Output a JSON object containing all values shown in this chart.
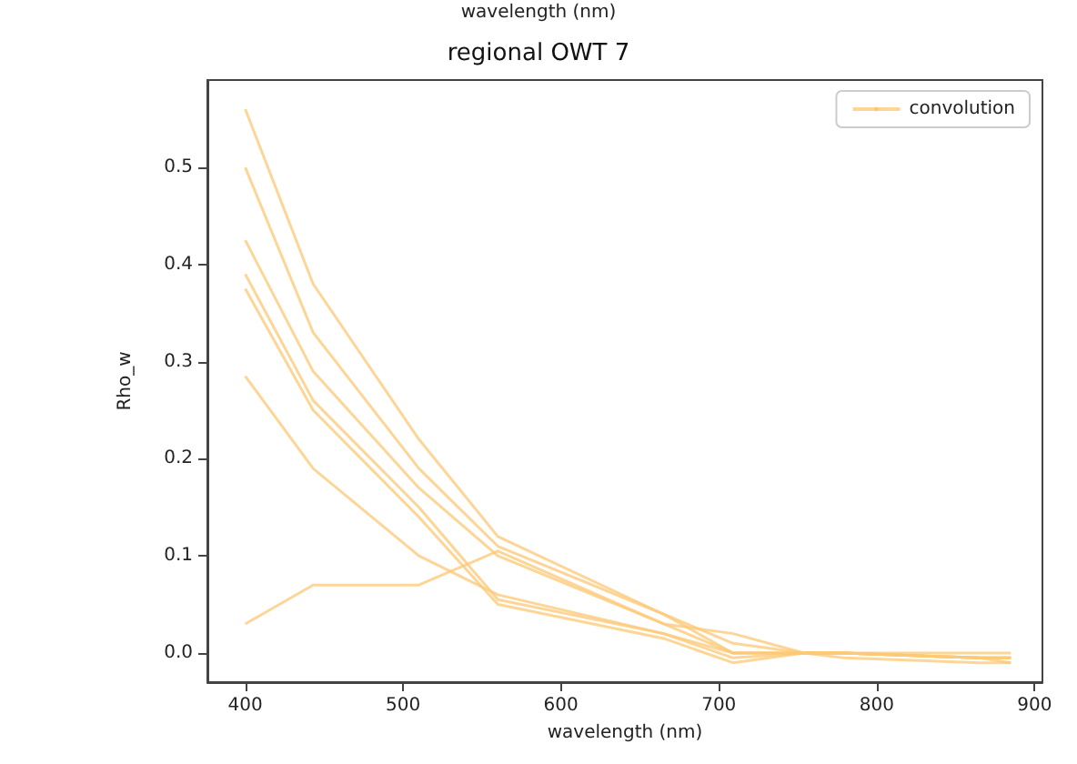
{
  "chart_data": {
    "type": "line",
    "title": "regional OWT 7",
    "xlabel": "wavelength (nm)",
    "ylabel": "Rho_w",
    "annotations": [
      "wavelength (nm)"
    ],
    "x": [
      400,
      443,
      510,
      560,
      665,
      709,
      754,
      779,
      865,
      885
    ],
    "xlim": [
      376,
      905
    ],
    "xticks": [
      400,
      500,
      600,
      700,
      800,
      900
    ],
    "ylim": [
      -0.03,
      0.59
    ],
    "yticks": [
      {
        "value": 0,
        "label": "0.0"
      },
      0.1,
      0.2,
      0.3,
      0.4,
      0.5
    ],
    "grid": false,
    "legend": "top right",
    "marker": "none",
    "line_style": "solid",
    "series": [
      {
        "name": "convolution",
        "color": "#fcc874",
        "values": [
          0.56,
          0.38,
          0.22,
          0.12,
          0.04,
          0.01,
          0.0,
          0.0,
          -0.005,
          -0.005
        ]
      },
      {
        "color": "#fcc874",
        "values": [
          0.5,
          0.33,
          0.19,
          0.11,
          0.04,
          0.0,
          0.0,
          0.0,
          -0.005,
          -0.005
        ]
      },
      {
        "color": "#fcc874",
        "values": [
          0.425,
          0.29,
          0.17,
          0.1,
          0.03,
          0.0,
          0.0,
          0.0,
          -0.005,
          -0.005
        ]
      },
      {
        "color": "#fcc874",
        "values": [
          0.39,
          0.26,
          0.15,
          0.055,
          0.02,
          -0.005,
          0.0,
          0.0,
          -0.005,
          -0.01
        ]
      },
      {
        "color": "#fcc874",
        "values": [
          0.375,
          0.25,
          0.14,
          0.05,
          0.015,
          -0.01,
          0.0,
          -0.005,
          -0.01,
          -0.01
        ]
      },
      {
        "color": "#fcc874",
        "values": [
          0.285,
          0.19,
          0.1,
          0.06,
          0.02,
          0.0,
          0.0,
          0.0,
          -0.005,
          -0.005
        ]
      },
      {
        "color": "#fcc874",
        "values": [
          0.03,
          0.07,
          0.07,
          0.105,
          0.03,
          0.02,
          0.0,
          0.0,
          0.0,
          0.0
        ]
      }
    ]
  }
}
